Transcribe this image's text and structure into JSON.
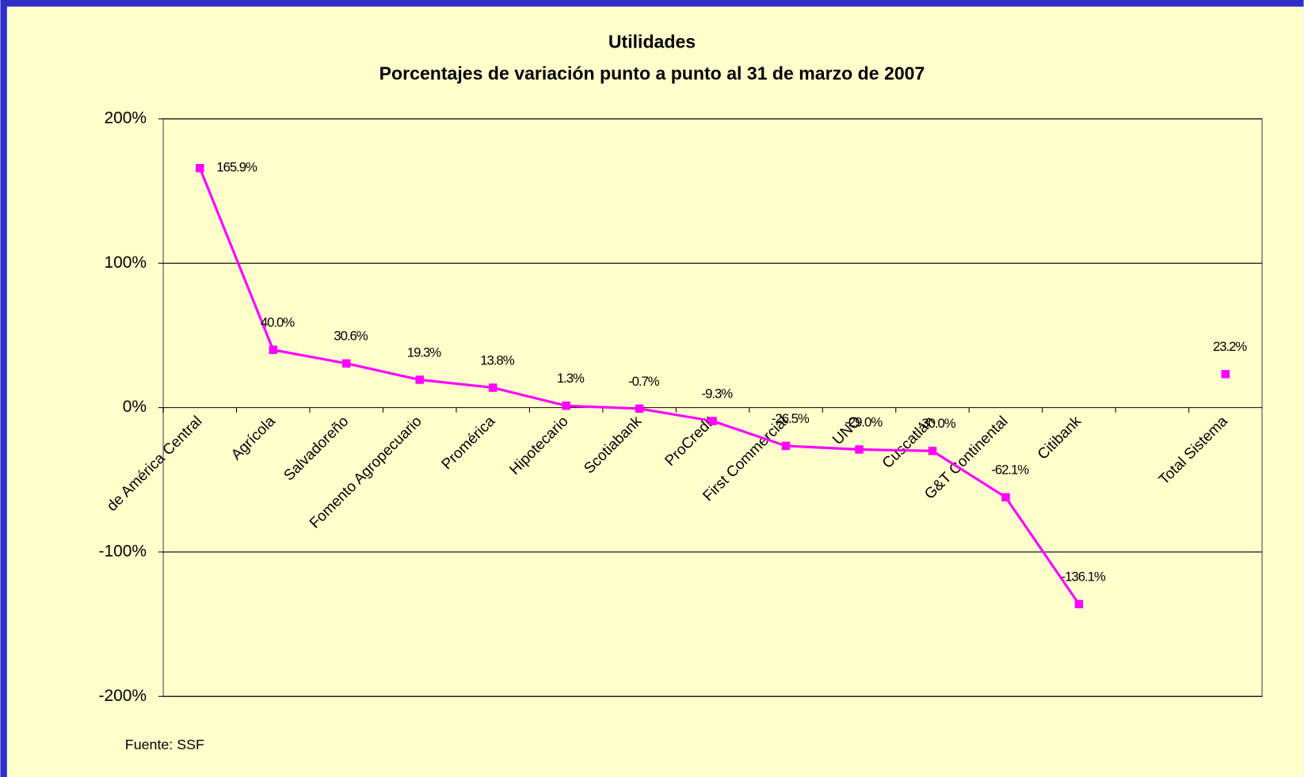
{
  "chart_data": {
    "type": "line",
    "title": "Utilidades",
    "subtitle": "Porcentajes de variación punto a punto al 31 de marzo de 2007",
    "source": "Fuente: SSF",
    "categories": [
      "de América Central",
      "Agrícola",
      "Salvadoreño",
      "Fomento Agropecuario",
      "Promérica",
      "Hipotecario",
      "Scotiabank",
      "ProCredit",
      "First Commercial",
      "UNO",
      "Cuscatlán",
      "G&T Continental",
      "Citibank",
      null,
      "Total Sistema"
    ],
    "series": [
      {
        "name": "Utilidades",
        "color": "#ff00ff",
        "values": [
          165.9,
          40.0,
          30.6,
          19.3,
          13.8,
          1.3,
          -0.7,
          -9.3,
          -26.5,
          -29.0,
          -30.0,
          -62.1,
          -136.1,
          null,
          23.2
        ],
        "value_labels": [
          "165.9%",
          "40.0%",
          "30.6%",
          "19.3%",
          "13.8%",
          "1.3%",
          "-0.7%",
          "-9.3%",
          "-26.5%",
          "-29.0%",
          "-30.0%",
          "-62.1%",
          "-136.1%",
          null,
          "23.2%"
        ]
      }
    ],
    "ylim": [
      -200,
      200
    ],
    "yticks": [
      {
        "value": -200,
        "label": "-200%"
      },
      {
        "value": -100,
        "label": "-100%"
      },
      {
        "value": 0,
        "label": "0%"
      },
      {
        "value": 100,
        "label": "100%"
      },
      {
        "value": 200,
        "label": "200%"
      }
    ],
    "grid": true
  }
}
